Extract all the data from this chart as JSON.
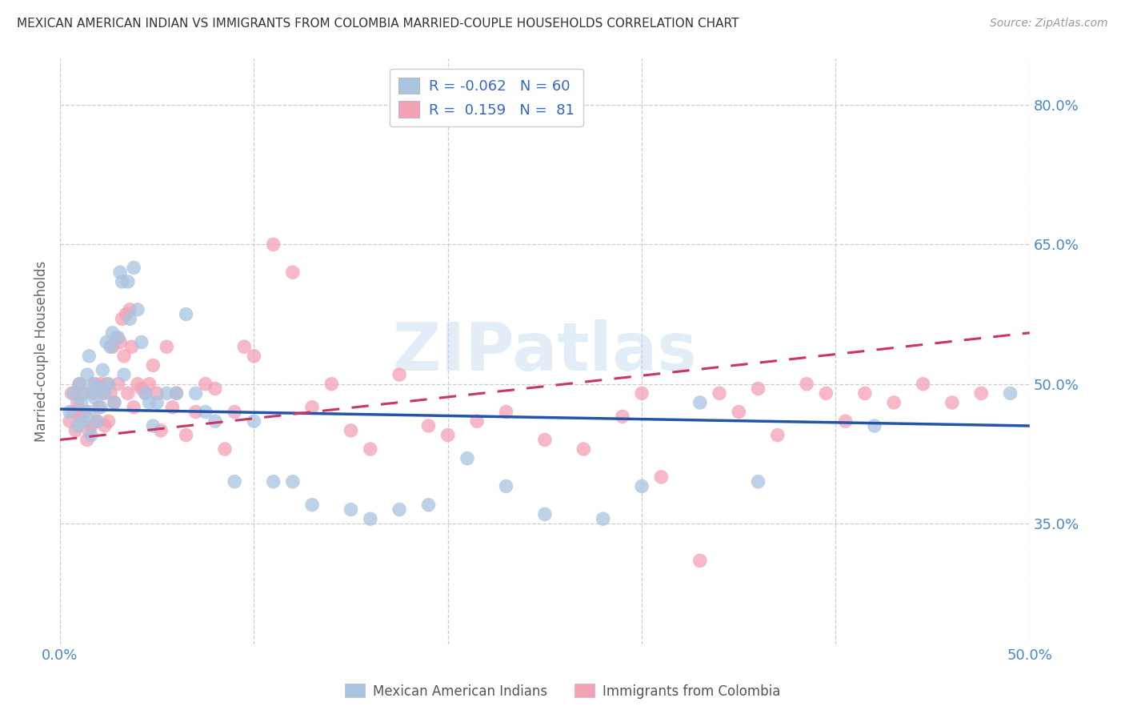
{
  "title": "MEXICAN AMERICAN INDIAN VS IMMIGRANTS FROM COLOMBIA MARRIED-COUPLE HOUSEHOLDS CORRELATION CHART",
  "source": "Source: ZipAtlas.com",
  "ylabel": "Married-couple Households",
  "xlim": [
    0.0,
    0.5
  ],
  "ylim": [
    0.22,
    0.85
  ],
  "yticks": [
    0.35,
    0.5,
    0.65,
    0.8
  ],
  "ytick_labels": [
    "35.0%",
    "50.0%",
    "65.0%",
    "80.0%"
  ],
  "xticks": [
    0.0,
    0.1,
    0.2,
    0.3,
    0.4,
    0.5
  ],
  "xtick_labels": [
    "0.0%",
    "",
    "",
    "",
    "",
    "50.0%"
  ],
  "blue_R": -0.062,
  "blue_N": 60,
  "pink_R": 0.159,
  "pink_N": 81,
  "blue_color": "#a8c4e0",
  "pink_color": "#f4a0b5",
  "blue_line_color": "#2255aa",
  "pink_line_color": "#cc3366",
  "background_color": "#ffffff",
  "grid_color": "#cccccc",
  "watermark": "ZIPatlas",
  "legend_label_blue": "Mexican American Indians",
  "legend_label_pink": "Immigrants from Colombia",
  "blue_line_x0": 0.0,
  "blue_line_y0": 0.473,
  "blue_line_x1": 0.5,
  "blue_line_y1": 0.455,
  "pink_line_x0": 0.0,
  "pink_line_y0": 0.44,
  "pink_line_x1": 0.5,
  "pink_line_y1": 0.555,
  "blue_scatter_x": [
    0.005,
    0.007,
    0.009,
    0.01,
    0.011,
    0.012,
    0.013,
    0.014,
    0.015,
    0.015,
    0.016,
    0.017,
    0.018,
    0.019,
    0.02,
    0.021,
    0.022,
    0.023,
    0.024,
    0.025,
    0.026,
    0.027,
    0.028,
    0.03,
    0.031,
    0.032,
    0.033,
    0.035,
    0.036,
    0.038,
    0.04,
    0.042,
    0.044,
    0.046,
    0.048,
    0.05,
    0.055,
    0.06,
    0.065,
    0.07,
    0.075,
    0.08,
    0.09,
    0.1,
    0.11,
    0.12,
    0.13,
    0.15,
    0.16,
    0.175,
    0.19,
    0.21,
    0.23,
    0.25,
    0.28,
    0.3,
    0.33,
    0.36,
    0.42,
    0.49
  ],
  "blue_scatter_y": [
    0.47,
    0.49,
    0.455,
    0.5,
    0.48,
    0.46,
    0.49,
    0.51,
    0.53,
    0.47,
    0.445,
    0.5,
    0.485,
    0.46,
    0.495,
    0.475,
    0.515,
    0.49,
    0.545,
    0.5,
    0.54,
    0.555,
    0.48,
    0.55,
    0.62,
    0.61,
    0.51,
    0.61,
    0.57,
    0.625,
    0.58,
    0.545,
    0.49,
    0.48,
    0.455,
    0.48,
    0.49,
    0.49,
    0.575,
    0.49,
    0.47,
    0.46,
    0.395,
    0.46,
    0.395,
    0.395,
    0.37,
    0.365,
    0.355,
    0.365,
    0.37,
    0.42,
    0.39,
    0.36,
    0.355,
    0.39,
    0.48,
    0.395,
    0.455,
    0.49
  ],
  "pink_scatter_x": [
    0.005,
    0.006,
    0.007,
    0.008,
    0.009,
    0.01,
    0.011,
    0.012,
    0.013,
    0.014,
    0.015,
    0.016,
    0.017,
    0.018,
    0.019,
    0.02,
    0.021,
    0.022,
    0.023,
    0.024,
    0.025,
    0.026,
    0.027,
    0.028,
    0.029,
    0.03,
    0.031,
    0.032,
    0.033,
    0.034,
    0.035,
    0.036,
    0.037,
    0.038,
    0.04,
    0.042,
    0.044,
    0.046,
    0.048,
    0.05,
    0.052,
    0.055,
    0.058,
    0.06,
    0.065,
    0.07,
    0.075,
    0.08,
    0.085,
    0.09,
    0.095,
    0.1,
    0.11,
    0.12,
    0.13,
    0.14,
    0.15,
    0.16,
    0.175,
    0.19,
    0.2,
    0.215,
    0.23,
    0.25,
    0.27,
    0.29,
    0.3,
    0.31,
    0.33,
    0.34,
    0.35,
    0.36,
    0.37,
    0.385,
    0.395,
    0.405,
    0.415,
    0.43,
    0.445,
    0.46,
    0.475
  ],
  "pink_scatter_y": [
    0.46,
    0.49,
    0.47,
    0.45,
    0.48,
    0.5,
    0.465,
    0.49,
    0.47,
    0.44,
    0.45,
    0.455,
    0.49,
    0.5,
    0.46,
    0.475,
    0.5,
    0.49,
    0.455,
    0.5,
    0.46,
    0.49,
    0.54,
    0.48,
    0.55,
    0.5,
    0.545,
    0.57,
    0.53,
    0.575,
    0.49,
    0.58,
    0.54,
    0.475,
    0.5,
    0.495,
    0.49,
    0.5,
    0.52,
    0.49,
    0.45,
    0.54,
    0.475,
    0.49,
    0.445,
    0.47,
    0.5,
    0.495,
    0.43,
    0.47,
    0.54,
    0.53,
    0.65,
    0.62,
    0.475,
    0.5,
    0.45,
    0.43,
    0.51,
    0.455,
    0.445,
    0.46,
    0.47,
    0.44,
    0.43,
    0.465,
    0.49,
    0.4,
    0.31,
    0.49,
    0.47,
    0.495,
    0.445,
    0.5,
    0.49,
    0.46,
    0.49,
    0.48,
    0.5,
    0.48,
    0.49
  ]
}
